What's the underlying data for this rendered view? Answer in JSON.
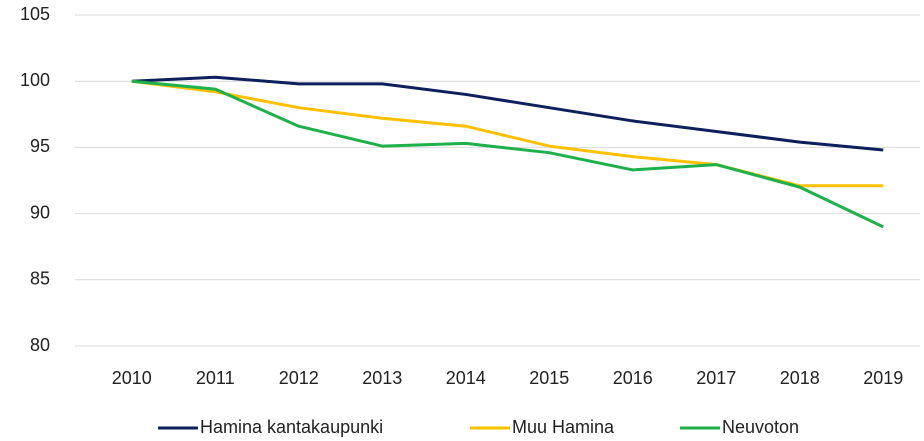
{
  "chart_data": {
    "type": "line",
    "categories": [
      "2010",
      "2011",
      "2012",
      "2013",
      "2014",
      "2015",
      "2016",
      "2017",
      "2018",
      "2019"
    ],
    "series": [
      {
        "name": "Hamina kantakaupunki",
        "color": "#0d1f5c",
        "values": [
          100,
          100.3,
          99.8,
          99.8,
          99.0,
          98.0,
          97.0,
          96.2,
          95.4,
          94.8
        ]
      },
      {
        "name": "Muu Hamina",
        "color": "#ffc000",
        "values": [
          100,
          99.2,
          98.0,
          97.2,
          96.6,
          95.1,
          94.3,
          93.7,
          92.1,
          92.1
        ]
      },
      {
        "name": "Neuvoton",
        "color": "#1db04b",
        "values": [
          100,
          99.4,
          96.6,
          95.1,
          95.3,
          94.6,
          93.3,
          93.7,
          92.0,
          89.0
        ]
      }
    ],
    "ylim": [
      80,
      105
    ],
    "yticks": [
      80,
      85,
      90,
      95,
      100,
      105
    ],
    "grid": true,
    "legend": "bottom"
  }
}
